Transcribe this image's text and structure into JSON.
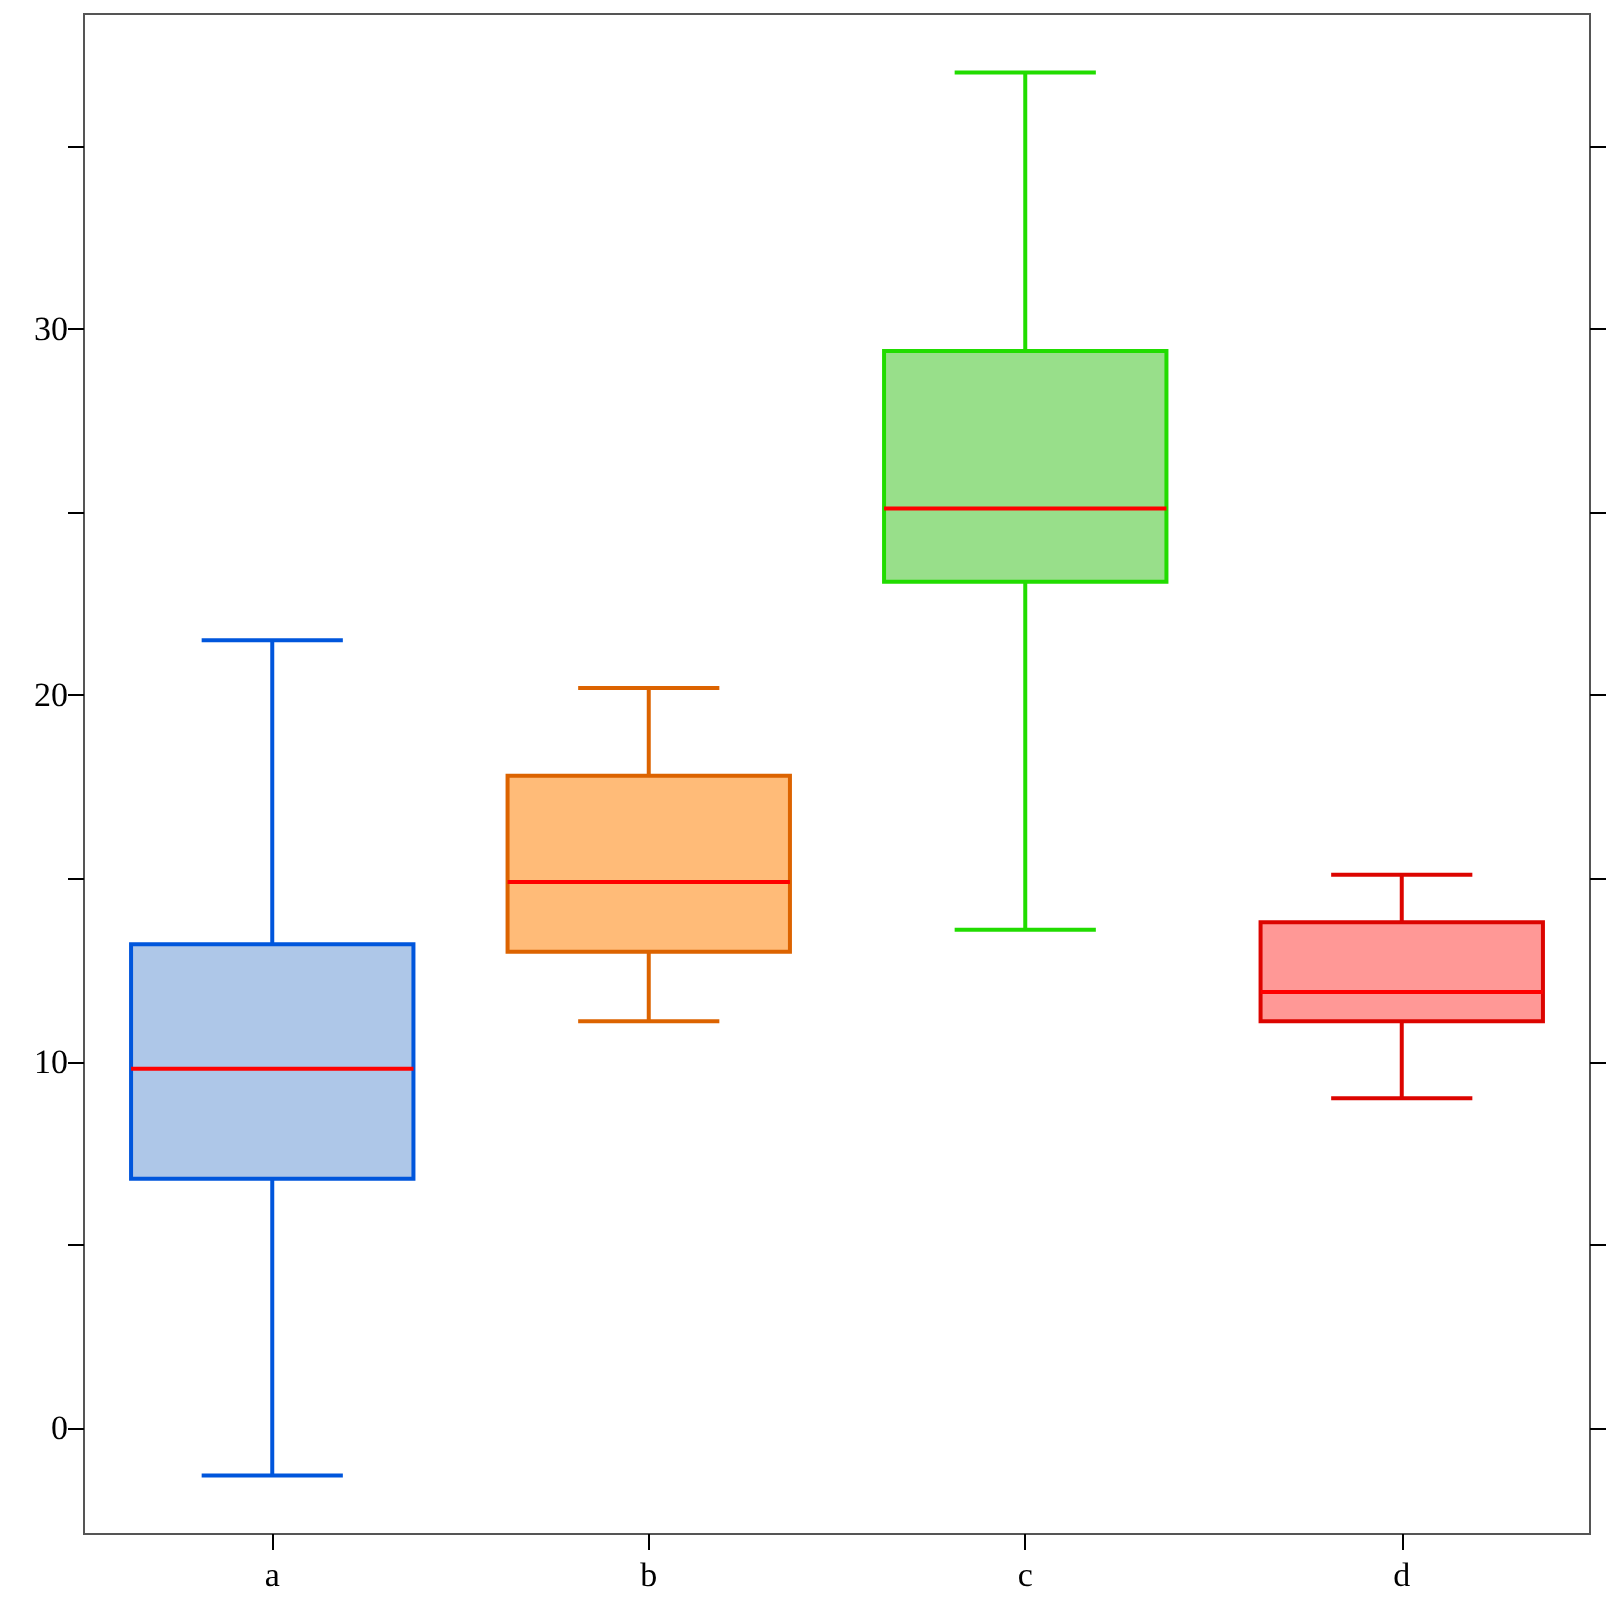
{
  "chart_data": {
    "type": "box",
    "categories": [
      "a",
      "b",
      "c",
      "d"
    ],
    "boxes": [
      {
        "low": -1.3,
        "q1": 6.8,
        "median": 9.8,
        "q3": 13.2,
        "high": 21.5
      },
      {
        "low": 11.1,
        "q1": 13.0,
        "median": 14.9,
        "q3": 17.8,
        "high": 20.2
      },
      {
        "low": 13.6,
        "q1": 23.1,
        "median": 25.1,
        "q3": 29.4,
        "high": 37.0
      },
      {
        "low": 9.0,
        "q1": 11.1,
        "median": 11.9,
        "q3": 13.8,
        "high": 15.1
      }
    ],
    "colors": [
      "#aec7e8",
      "#ffbb78",
      "#98df8a",
      "#ff9896"
    ],
    "ylim": [
      -2.9,
      38.6
    ],
    "yticks": [
      0,
      {
        "value": 5,
        "label": null
      },
      10,
      {
        "value": 15,
        "label": null
      },
      20,
      {
        "value": 25,
        "label": null
      },
      30,
      {
        "value": 35,
        "label": null
      }
    ],
    "grid": false
  }
}
